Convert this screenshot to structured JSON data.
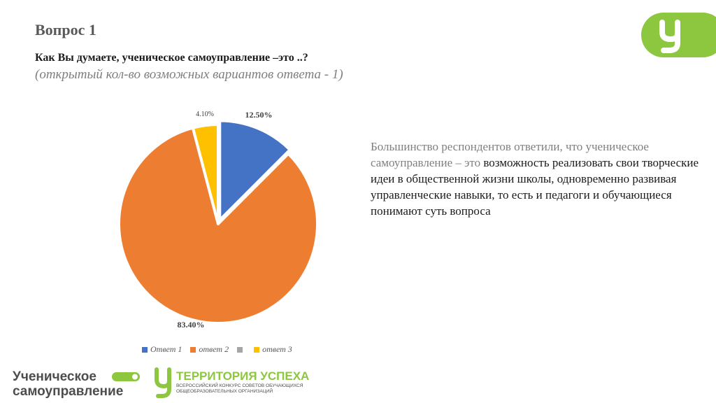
{
  "slide": {
    "title": "Вопрос 1",
    "question": "Как Вы думаете, ученическое самоуправление –это ..?",
    "subnote": "(открытый кол-во возможных вариантов ответа - 1)",
    "description_muted": "Большинство респондентов ответили, что ученическое самоуправление – это",
    "description_main": " возможность реализовать свои творческие идеи в общественной жизни школы, одновременно развивая управленческие навыки, то есть и педагоги и обучающиеся понимают суть вопроса"
  },
  "logos": {
    "left_line1": "Ученическое",
    "left_line2": "самоуправление",
    "right_title": "ТЕРРИТОРИЯ УСПЕХА",
    "right_sub1": "ВСЕРОССИЙСКИЙ КОНКУРС СОВЕТОВ ОБУЧАЮЩИХСЯ",
    "right_sub2": "ОБЩЕОБРАЗОВАТЕЛЬНЫХ ОРГАНИЗАЦИЙ",
    "accent_color": "#8DC63F"
  },
  "chart_data": {
    "type": "pie",
    "categories": [
      "Ответ 1",
      "ответ 2",
      "",
      "ответ 3"
    ],
    "values": [
      12.5,
      83.4,
      0,
      4.1
    ],
    "labels": [
      "12.50%",
      "83.40%",
      "",
      "4.10%"
    ],
    "colors": [
      "#4472C4",
      "#ED7D31",
      "#A5A5A5",
      "#FFC000"
    ],
    "legend_position": "bottom"
  }
}
